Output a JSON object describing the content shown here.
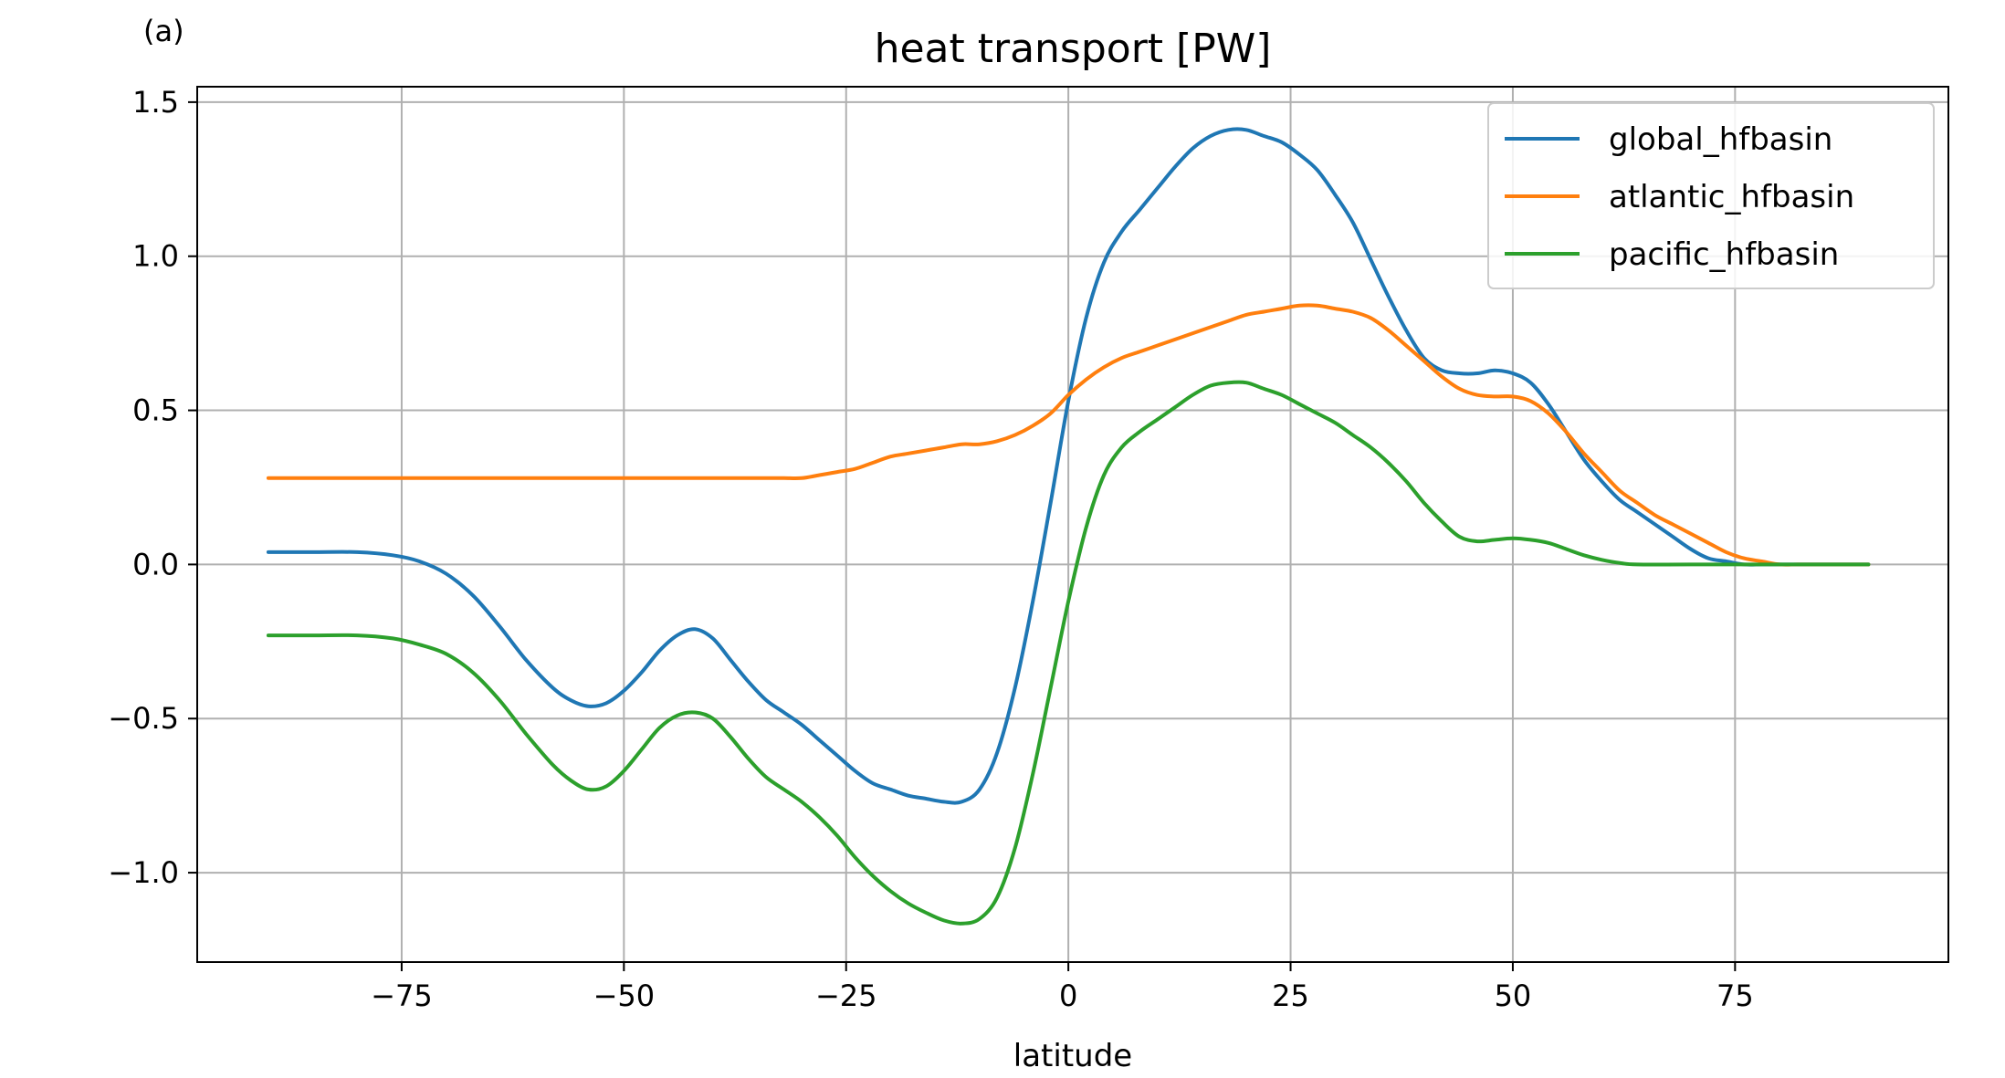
{
  "panel_label": "(a)",
  "chart_data": {
    "type": "line",
    "title": "heat transport [PW]",
    "xlabel": "latitude",
    "ylabel": "",
    "xlim": [
      -98,
      99
    ],
    "ylim": [
      -1.29,
      1.55
    ],
    "xticks": [
      -75,
      -50,
      -25,
      0,
      25,
      50,
      75
    ],
    "xtick_labels": [
      "−75",
      "−50",
      "−25",
      "0",
      "25",
      "50",
      "75"
    ],
    "yticks": [
      -1.0,
      -0.5,
      0.0,
      0.5,
      1.0,
      1.5
    ],
    "ytick_labels": [
      "−1.0",
      "−0.5",
      "0.0",
      "0.5",
      "1.0",
      "1.5"
    ],
    "grid": true,
    "legend_position": "top-right",
    "series": [
      {
        "name": "global_hfbasin",
        "color": "#1f77b4",
        "x": [
          -90,
          -85,
          -80,
          -76,
          -73,
          -70,
          -67,
          -64,
          -61,
          -58,
          -56,
          -54,
          -52,
          -50,
          -48,
          -46,
          -44,
          -42,
          -40,
          -38,
          -36,
          -34,
          -32,
          -30,
          -28,
          -26,
          -24,
          -22,
          -20,
          -18,
          -16,
          -14,
          -12,
          -10,
          -8,
          -6,
          -4,
          -2,
          0,
          2,
          4,
          6,
          8,
          10,
          12,
          14,
          16,
          18,
          20,
          22,
          24,
          26,
          28,
          30,
          32,
          34,
          36,
          38,
          40,
          42,
          44,
          46,
          48,
          50,
          52,
          54,
          56,
          58,
          60,
          62,
          64,
          66,
          68,
          70,
          72,
          74,
          76,
          78,
          80,
          84,
          90
        ],
        "y": [
          0.04,
          0.04,
          0.04,
          0.03,
          0.01,
          -0.03,
          -0.1,
          -0.2,
          -0.31,
          -0.4,
          -0.44,
          -0.46,
          -0.45,
          -0.41,
          -0.35,
          -0.28,
          -0.23,
          -0.21,
          -0.24,
          -0.31,
          -0.38,
          -0.44,
          -0.48,
          -0.52,
          -0.57,
          -0.62,
          -0.67,
          -0.71,
          -0.73,
          -0.75,
          -0.76,
          -0.77,
          -0.77,
          -0.73,
          -0.61,
          -0.4,
          -0.12,
          0.2,
          0.53,
          0.8,
          0.98,
          1.08,
          1.15,
          1.22,
          1.29,
          1.35,
          1.39,
          1.41,
          1.41,
          1.39,
          1.37,
          1.33,
          1.28,
          1.2,
          1.11,
          0.99,
          0.87,
          0.76,
          0.67,
          0.63,
          0.62,
          0.62,
          0.63,
          0.62,
          0.59,
          0.52,
          0.43,
          0.34,
          0.27,
          0.21,
          0.17,
          0.13,
          0.09,
          0.05,
          0.02,
          0.01,
          0.0,
          0.0,
          0.0,
          0.0,
          0.0
        ]
      },
      {
        "name": "atlantic_hfbasin",
        "color": "#ff7f0e",
        "x": [
          -90,
          -80,
          -70,
          -60,
          -50,
          -40,
          -34,
          -32,
          -30,
          -28,
          -26,
          -24,
          -22,
          -20,
          -18,
          -16,
          -14,
          -12,
          -10,
          -8,
          -6,
          -4,
          -2,
          0,
          2,
          4,
          6,
          8,
          10,
          12,
          14,
          16,
          18,
          20,
          22,
          24,
          26,
          28,
          30,
          32,
          34,
          36,
          38,
          40,
          42,
          44,
          46,
          48,
          50,
          52,
          54,
          56,
          58,
          60,
          62,
          64,
          66,
          68,
          70,
          72,
          74,
          76,
          78,
          80,
          82,
          84,
          90
        ],
        "y": [
          0.28,
          0.28,
          0.28,
          0.28,
          0.28,
          0.28,
          0.28,
          0.28,
          0.28,
          0.29,
          0.3,
          0.31,
          0.33,
          0.35,
          0.36,
          0.37,
          0.38,
          0.39,
          0.39,
          0.4,
          0.42,
          0.45,
          0.49,
          0.55,
          0.6,
          0.64,
          0.67,
          0.69,
          0.71,
          0.73,
          0.75,
          0.77,
          0.79,
          0.81,
          0.82,
          0.83,
          0.84,
          0.84,
          0.83,
          0.82,
          0.8,
          0.76,
          0.71,
          0.66,
          0.61,
          0.57,
          0.55,
          0.545,
          0.545,
          0.53,
          0.49,
          0.43,
          0.36,
          0.3,
          0.24,
          0.2,
          0.16,
          0.13,
          0.1,
          0.07,
          0.04,
          0.02,
          0.01,
          0.0,
          0.0,
          0.0,
          0.0
        ]
      },
      {
        "name": "pacific_hfbasin",
        "color": "#2ca02c",
        "x": [
          -90,
          -85,
          -80,
          -76,
          -73,
          -70,
          -67,
          -64,
          -61,
          -58,
          -56,
          -54,
          -52,
          -50,
          -48,
          -46,
          -44,
          -42,
          -40,
          -38,
          -36,
          -34,
          -32,
          -30,
          -28,
          -26,
          -24,
          -22,
          -20,
          -18,
          -16,
          -14,
          -12,
          -10,
          -8,
          -6,
          -4,
          -2,
          0,
          2,
          4,
          6,
          8,
          10,
          12,
          14,
          16,
          18,
          20,
          22,
          24,
          26,
          28,
          30,
          32,
          34,
          36,
          38,
          40,
          42,
          44,
          46,
          48,
          50,
          52,
          54,
          56,
          58,
          60,
          62,
          64,
          70,
          80,
          90
        ],
        "y": [
          -0.23,
          -0.23,
          -0.23,
          -0.24,
          -0.26,
          -0.29,
          -0.35,
          -0.44,
          -0.55,
          -0.65,
          -0.7,
          -0.73,
          -0.72,
          -0.67,
          -0.6,
          -0.53,
          -0.49,
          -0.48,
          -0.5,
          -0.56,
          -0.63,
          -0.69,
          -0.73,
          -0.77,
          -0.82,
          -0.88,
          -0.95,
          -1.01,
          -1.06,
          -1.1,
          -1.13,
          -1.155,
          -1.165,
          -1.15,
          -1.08,
          -0.92,
          -0.68,
          -0.4,
          -0.12,
          0.12,
          0.29,
          0.38,
          0.43,
          0.47,
          0.51,
          0.55,
          0.58,
          0.59,
          0.59,
          0.57,
          0.55,
          0.52,
          0.49,
          0.46,
          0.42,
          0.38,
          0.33,
          0.27,
          0.2,
          0.14,
          0.09,
          0.075,
          0.08,
          0.085,
          0.08,
          0.07,
          0.05,
          0.03,
          0.015,
          0.005,
          0.0,
          0.0,
          0.0,
          0.0
        ]
      }
    ]
  }
}
